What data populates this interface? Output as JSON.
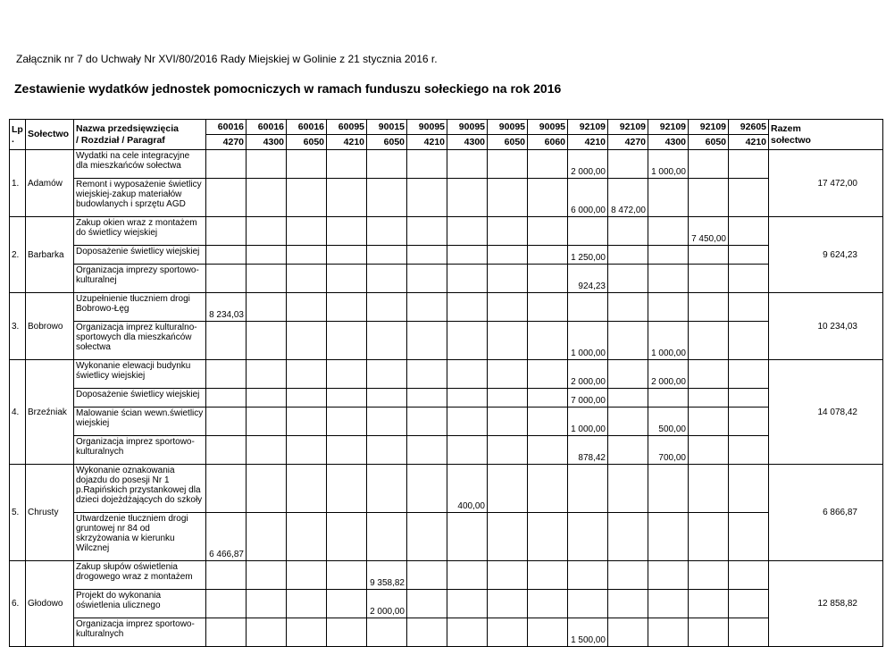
{
  "page": {
    "attachment_line": "Załącznik nr 7 do Uchwały Nr XVI/80/2016 Rady Miejskiej w Golinie z 21 stycznia 2016 r.",
    "title": "Zestawienie wydatków jednostek pomocniczych w ramach funduszu sołeckiego na rok 2016"
  },
  "table": {
    "headers": {
      "lp": "Lp.",
      "solectwo": "Sołectwo",
      "name_line1": "Nazwa przedsięwzięcia",
      "name_line2": "/ Rozdział / Paragraf",
      "razem_line1": "Razem",
      "razem_line2": "sołectwo"
    },
    "columns": [
      {
        "rozdzial": "60016",
        "paragraf": "4270"
      },
      {
        "rozdzial": "60016",
        "paragraf": "4300"
      },
      {
        "rozdzial": "60016",
        "paragraf": "6050"
      },
      {
        "rozdzial": "60095",
        "paragraf": "4210"
      },
      {
        "rozdzial": "90015",
        "paragraf": "6050"
      },
      {
        "rozdzial": "90095",
        "paragraf": "4210"
      },
      {
        "rozdzial": "90095",
        "paragraf": "4300"
      },
      {
        "rozdzial": "90095",
        "paragraf": "6050"
      },
      {
        "rozdzial": "90095",
        "paragraf": "6060"
      },
      {
        "rozdzial": "92109",
        "paragraf": "4210"
      },
      {
        "rozdzial": "92109",
        "paragraf": "4270"
      },
      {
        "rozdzial": "92109",
        "paragraf": "4300"
      },
      {
        "rozdzial": "92109",
        "paragraf": "6050"
      },
      {
        "rozdzial": "92605",
        "paragraf": "4210"
      }
    ],
    "rows": [
      {
        "lp": "1.",
        "solectwo": "Adamów",
        "razem": "17 472,00",
        "items": [
          {
            "name": "Wydatki na cele integracyjne dla mieszkańców sołectwa",
            "values": {
              "9": "2 000,00",
              "11": "1 000,00"
            }
          },
          {
            "name": "Remont i wyposażenie świetlicy wiejskiej-zakup materiałów budowlanych i sprzętu AGD",
            "values": {
              "9": "6 000,00",
              "10": "8 472,00"
            }
          }
        ]
      },
      {
        "lp": "2.",
        "solectwo": "Barbarka",
        "razem": "9 624,23",
        "items": [
          {
            "name": "Zakup okien wraz z montażem do świetlicy wiejskiej",
            "values": {
              "12": "7 450,00"
            }
          },
          {
            "name": "Doposażenie świetlicy wiejskiej",
            "values": {
              "9": "1 250,00"
            }
          },
          {
            "name": "Organizacja imprezy sportowo-kulturalnej",
            "values": {
              "9": "924,23"
            }
          }
        ]
      },
      {
        "lp": "3.",
        "solectwo": "Bobrowo",
        "razem": "10 234,03",
        "items": [
          {
            "name": "Uzupełnienie tłuczniem drogi Bobrowo-Łęg",
            "values": {
              "0": "8 234,03"
            }
          },
          {
            "name": "Organizacja imprez kulturalno-sportowych dla mieszkańców sołectwa",
            "values": {
              "9": "1 000,00",
              "11": "1 000,00"
            }
          }
        ]
      },
      {
        "lp": "4.",
        "solectwo": "Brzeźniak",
        "razem": "14 078,42",
        "items": [
          {
            "name": "Wykonanie elewacji budynku świetlicy wiejskiej",
            "values": {
              "9": "2 000,00",
              "11": "2 000,00"
            }
          },
          {
            "name": "Doposażenie świetlicy wiejskiej",
            "values": {
              "9": "7 000,00"
            }
          },
          {
            "name": "Malowanie ścian wewn.świetlicy wiejskiej",
            "values": {
              "9": "1 000,00",
              "11": "500,00"
            }
          },
          {
            "name": "Organizacja imprez sportowo-kulturalnych",
            "values": {
              "9": "878,42",
              "11": "700,00"
            }
          }
        ]
      },
      {
        "lp": "5.",
        "solectwo": "Chrusty",
        "razem": "6 866,87",
        "items": [
          {
            "name": "Wykonanie oznakowania dojazdu do posesji Nr 1 p.Rapińskich przystankowej dla dzieci dojeżdżających do szkoły",
            "values": {
              "6": "400,00"
            }
          },
          {
            "name": "Utwardzenie tłuczniem drogi gruntowej nr 84 od skrzyżowania w kierunku Wilcznej",
            "values": {
              "0": "6 466,87"
            }
          }
        ]
      },
      {
        "lp": "6.",
        "solectwo": "Głodowo",
        "razem": "12 858,82",
        "items": [
          {
            "name": "Zakup słupów oświetlenia drogowego wraz z montażem",
            "values": {
              "4": "9 358,82"
            }
          },
          {
            "name": "Projekt do wykonania oświetlenia ulicznego",
            "values": {
              "4": "2 000,00"
            }
          },
          {
            "name": "Organizacja imprez sportowo-kulturalnych",
            "values": {
              "9": "1 500,00"
            }
          }
        ]
      }
    ]
  }
}
